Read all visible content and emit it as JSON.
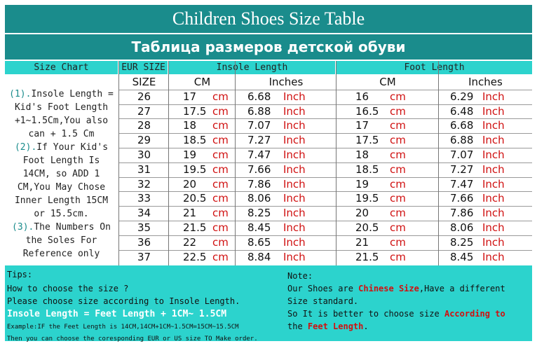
{
  "title": "Children Shoes Size Table",
  "subtitle": "Таблица размеров детской обуви",
  "headers": {
    "size_chart": "Size Chart",
    "eur_size": "EUR SIZE",
    "insole_length": "Insole Length",
    "foot_length": "Foot Length",
    "size": "SIZE",
    "cm": "CM",
    "inches": "Inches"
  },
  "units": {
    "cm": "cm",
    "inch": "Inch"
  },
  "side_notes": [
    {
      "num": "(1).",
      "text": "Insole Length ="
    },
    {
      "num": "",
      "text": "Kid's Foot Length"
    },
    {
      "num": "",
      "text": "+1~1.5Cm,You also"
    },
    {
      "num": "",
      "text": "can + 1.5 Cm"
    },
    {
      "num": "(2).",
      "text": "If Your Kid's"
    },
    {
      "num": "",
      "text": "Foot Length Is"
    },
    {
      "num": "",
      "text": "14CM,  so ADD 1"
    },
    {
      "num": "",
      "text": "CM,You May Chose"
    },
    {
      "num": "",
      "text": "Inner Length 15CM"
    },
    {
      "num": "",
      "text": "or 15.5cm."
    },
    {
      "num": "(3).",
      "text": "The Numbers On"
    },
    {
      "num": "",
      "text": "the Soles For"
    },
    {
      "num": "",
      "text": "Reference only"
    }
  ],
  "rows": [
    {
      "size": "26",
      "insole_cm": "17",
      "insole_in": "6.68",
      "foot_cm": "16",
      "foot_in": "6.29"
    },
    {
      "size": "27",
      "insole_cm": "17.5",
      "insole_in": "6.88",
      "foot_cm": "16.5",
      "foot_in": "6.48"
    },
    {
      "size": "28",
      "insole_cm": "18",
      "insole_in": "7.07",
      "foot_cm": "17",
      "foot_in": "6.68"
    },
    {
      "size": "29",
      "insole_cm": "18.5",
      "insole_in": "7.27",
      "foot_cm": "17.5",
      "foot_in": "6.88"
    },
    {
      "size": "30",
      "insole_cm": "19",
      "insole_in": "7.47",
      "foot_cm": "18",
      "foot_in": "7.07"
    },
    {
      "size": "31",
      "insole_cm": "19.5",
      "insole_in": "7.66",
      "foot_cm": "18.5",
      "foot_in": "7.27"
    },
    {
      "size": "32",
      "insole_cm": "20",
      "insole_in": "7.86",
      "foot_cm": "19",
      "foot_in": "7.47"
    },
    {
      "size": "33",
      "insole_cm": "20.5",
      "insole_in": "8.06",
      "foot_cm": "19.5",
      "foot_in": "7.66"
    },
    {
      "size": "34",
      "insole_cm": "21",
      "insole_in": "8.25",
      "foot_cm": "20",
      "foot_in": "7.86"
    },
    {
      "size": "35",
      "insole_cm": "21.5",
      "insole_in": "8.45",
      "foot_cm": "20.5",
      "foot_in": "8.06"
    },
    {
      "size": "36",
      "insole_cm": "22",
      "insole_in": "8.65",
      "foot_cm": "21",
      "foot_in": "8.25"
    },
    {
      "size": "37",
      "insole_cm": "22.5",
      "insole_in": "8.84",
      "foot_cm": "21.5",
      "foot_in": "8.45"
    }
  ],
  "tips": {
    "heading": "Tips:",
    "line1": "How to choose the size ?",
    "line2": "Please choose size according to Insole Length.",
    "formula": "Insole Length = Feet Length + 1CM~ 1.5CM",
    "example": "Example:IF the Feet Length is 14CM,14CM+1CM~1.5CM=15CM~15.5CM",
    "last": "Then you can choose the coresponding EUR or US size TO Make order."
  },
  "note": {
    "heading": "Note:",
    "l1_a": "Our Shoes are ",
    "l1_b": "Chinese Size",
    "l1_c": ",Have a different",
    "l2": "Size standard.",
    "l3_a": "So It is better to choose size ",
    "l3_b": "According to",
    "l4_a": "the ",
    "l4_b": "Feet Length",
    "l4_c": "."
  },
  "colors": {
    "header_dark": "#1a8c8c",
    "header_light": "#2cd3cd",
    "unit_red": "#d01010"
  }
}
